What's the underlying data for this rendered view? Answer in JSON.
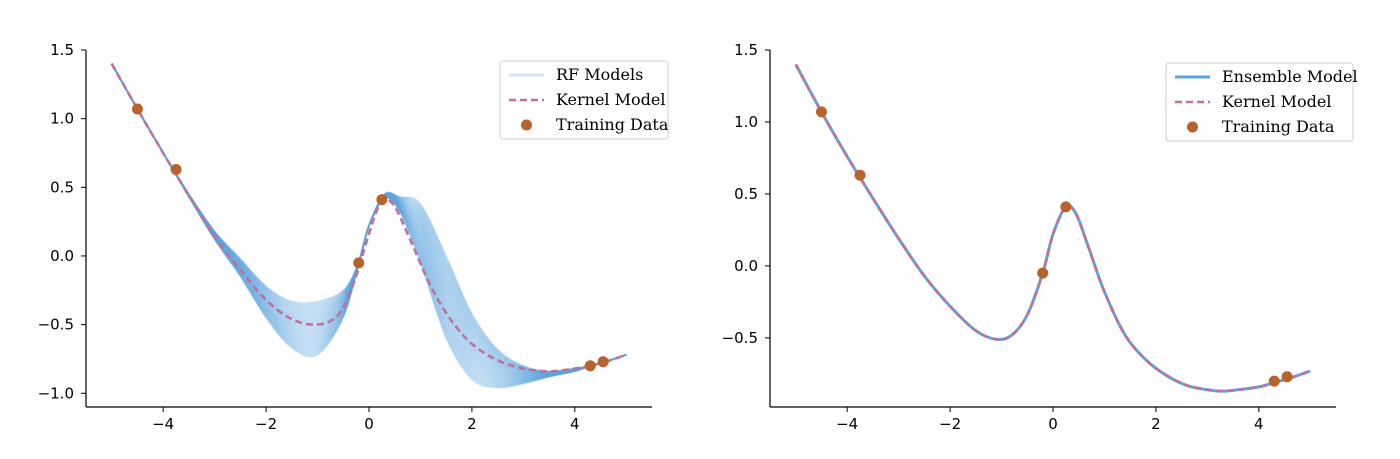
{
  "chart_data": [
    {
      "type": "line",
      "xlim": [
        -5.5,
        5.5
      ],
      "ylim": [
        -1.1,
        1.5
      ],
      "xticks": [
        -4,
        -2,
        0,
        2,
        4
      ],
      "xtick_labels": [
        "−4",
        "−2",
        "0",
        "2",
        "4"
      ],
      "yticks": [
        -1.0,
        -0.5,
        0.0,
        0.5,
        1.0,
        1.5
      ],
      "ytick_labels": [
        "−1.0",
        "−0.5",
        "0.0",
        "0.5",
        "1.0",
        "1.5"
      ],
      "grid": false,
      "legend_position": "top-right",
      "legend": [
        {
          "label": "RF Models",
          "style": "line",
          "color": "#cfe5f7"
        },
        {
          "label": "Kernel Model",
          "style": "dashed",
          "color": "#c0719a"
        },
        {
          "label": "Training Data",
          "style": "marker",
          "color": "#b8622c"
        }
      ],
      "series": [
        {
          "name": "RF Models",
          "kind": "ensemble",
          "color": "#5aa5e0",
          "count": 60,
          "x": [
            -5.0,
            -4.5,
            -4.0,
            -3.5,
            -3.0,
            -2.5,
            -2.0,
            -1.5,
            -1.0,
            -0.5,
            -0.2,
            0.0,
            0.3,
            0.6,
            1.0,
            1.5,
            2.0,
            2.5,
            3.0,
            3.5,
            4.0,
            4.3,
            4.6,
            5.0
          ],
          "y_low": [
            1.4,
            1.07,
            0.75,
            0.43,
            0.12,
            -0.15,
            -0.45,
            -0.67,
            -0.72,
            -0.45,
            -0.05,
            0.22,
            0.42,
            0.32,
            -0.05,
            -0.6,
            -0.9,
            -0.96,
            -0.93,
            -0.88,
            -0.84,
            -0.8,
            -0.77,
            -0.72
          ],
          "y_high": [
            1.4,
            1.07,
            0.75,
            0.45,
            0.18,
            -0.02,
            -0.22,
            -0.33,
            -0.33,
            -0.25,
            -0.05,
            0.22,
            0.45,
            0.43,
            0.38,
            0.0,
            -0.42,
            -0.68,
            -0.8,
            -0.84,
            -0.82,
            -0.8,
            -0.77,
            -0.72
          ]
        },
        {
          "name": "Kernel Model",
          "kind": "dashed",
          "color": "#c0719a",
          "x": [
            -5.0,
            -4.5,
            -4.0,
            -3.5,
            -3.0,
            -2.5,
            -2.0,
            -1.5,
            -1.0,
            -0.6,
            -0.3,
            -0.05,
            0.15,
            0.3,
            0.5,
            0.8,
            1.2,
            1.6,
            2.0,
            2.5,
            3.0,
            3.5,
            4.0,
            4.3,
            4.6,
            5.0
          ],
          "y": [
            1.4,
            1.07,
            0.75,
            0.44,
            0.14,
            -0.1,
            -0.32,
            -0.46,
            -0.5,
            -0.43,
            -0.2,
            0.1,
            0.33,
            0.41,
            0.36,
            0.12,
            -0.22,
            -0.47,
            -0.64,
            -0.76,
            -0.82,
            -0.84,
            -0.82,
            -0.8,
            -0.77,
            -0.72
          ]
        },
        {
          "name": "Training Data",
          "kind": "scatter",
          "color": "#b8622c",
          "x": [
            -4.5,
            -3.75,
            -0.2,
            0.25,
            4.3,
            4.55
          ],
          "y": [
            1.07,
            0.63,
            -0.05,
            0.41,
            -0.8,
            -0.77
          ]
        }
      ]
    },
    {
      "type": "line",
      "xlim": [
        -5.5,
        5.5
      ],
      "ylim": [
        -0.98,
        1.5
      ],
      "xticks": [
        -4,
        -2,
        0,
        2,
        4
      ],
      "xtick_labels": [
        "−4",
        "−2",
        "0",
        "2",
        "4"
      ],
      "yticks": [
        -0.5,
        0.0,
        0.5,
        1.0,
        1.5
      ],
      "ytick_labels": [
        "−0.5",
        "0.0",
        "0.5",
        "1.0",
        "1.5"
      ],
      "grid": false,
      "legend_position": "top-right",
      "legend": [
        {
          "label": "Ensemble Model",
          "style": "line",
          "color": "#5aa5e0"
        },
        {
          "label": "Kernel Model",
          "style": "dashed",
          "color": "#c0719a"
        },
        {
          "label": "Training Data",
          "style": "marker",
          "color": "#b8622c"
        }
      ],
      "series": [
        {
          "name": "Ensemble Model",
          "kind": "solid",
          "color": "#5aa5e0",
          "x": [
            -5.0,
            -4.5,
            -4.0,
            -3.5,
            -3.0,
            -2.5,
            -2.0,
            -1.5,
            -1.1,
            -0.8,
            -0.5,
            -0.2,
            0.0,
            0.25,
            0.45,
            0.7,
            1.0,
            1.4,
            1.8,
            2.2,
            2.6,
            3.0,
            3.3,
            3.6,
            4.0,
            4.3,
            4.6,
            5.0
          ],
          "y": [
            1.4,
            1.07,
            0.76,
            0.47,
            0.19,
            -0.07,
            -0.28,
            -0.45,
            -0.51,
            -0.48,
            -0.34,
            -0.05,
            0.22,
            0.41,
            0.36,
            0.12,
            -0.18,
            -0.48,
            -0.65,
            -0.76,
            -0.83,
            -0.86,
            -0.87,
            -0.86,
            -0.84,
            -0.81,
            -0.78,
            -0.73
          ]
        },
        {
          "name": "Kernel Model",
          "kind": "dashed",
          "color": "#c0719a",
          "x": [
            -5.0,
            -4.5,
            -4.0,
            -3.5,
            -3.0,
            -2.5,
            -2.0,
            -1.5,
            -1.1,
            -0.8,
            -0.5,
            -0.2,
            0.0,
            0.25,
            0.45,
            0.7,
            1.0,
            1.4,
            1.8,
            2.2,
            2.6,
            3.0,
            3.3,
            3.6,
            4.0,
            4.3,
            4.6,
            5.0
          ],
          "y": [
            1.4,
            1.07,
            0.76,
            0.47,
            0.19,
            -0.07,
            -0.28,
            -0.45,
            -0.51,
            -0.48,
            -0.34,
            -0.05,
            0.22,
            0.41,
            0.36,
            0.12,
            -0.18,
            -0.48,
            -0.65,
            -0.76,
            -0.83,
            -0.86,
            -0.87,
            -0.86,
            -0.84,
            -0.81,
            -0.78,
            -0.73
          ]
        },
        {
          "name": "Training Data",
          "kind": "scatter",
          "color": "#b8622c",
          "x": [
            -4.5,
            -3.75,
            -0.2,
            0.25,
            4.3,
            4.55
          ],
          "y": [
            1.07,
            0.63,
            -0.05,
            0.41,
            -0.8,
            -0.77
          ]
        }
      ]
    }
  ]
}
